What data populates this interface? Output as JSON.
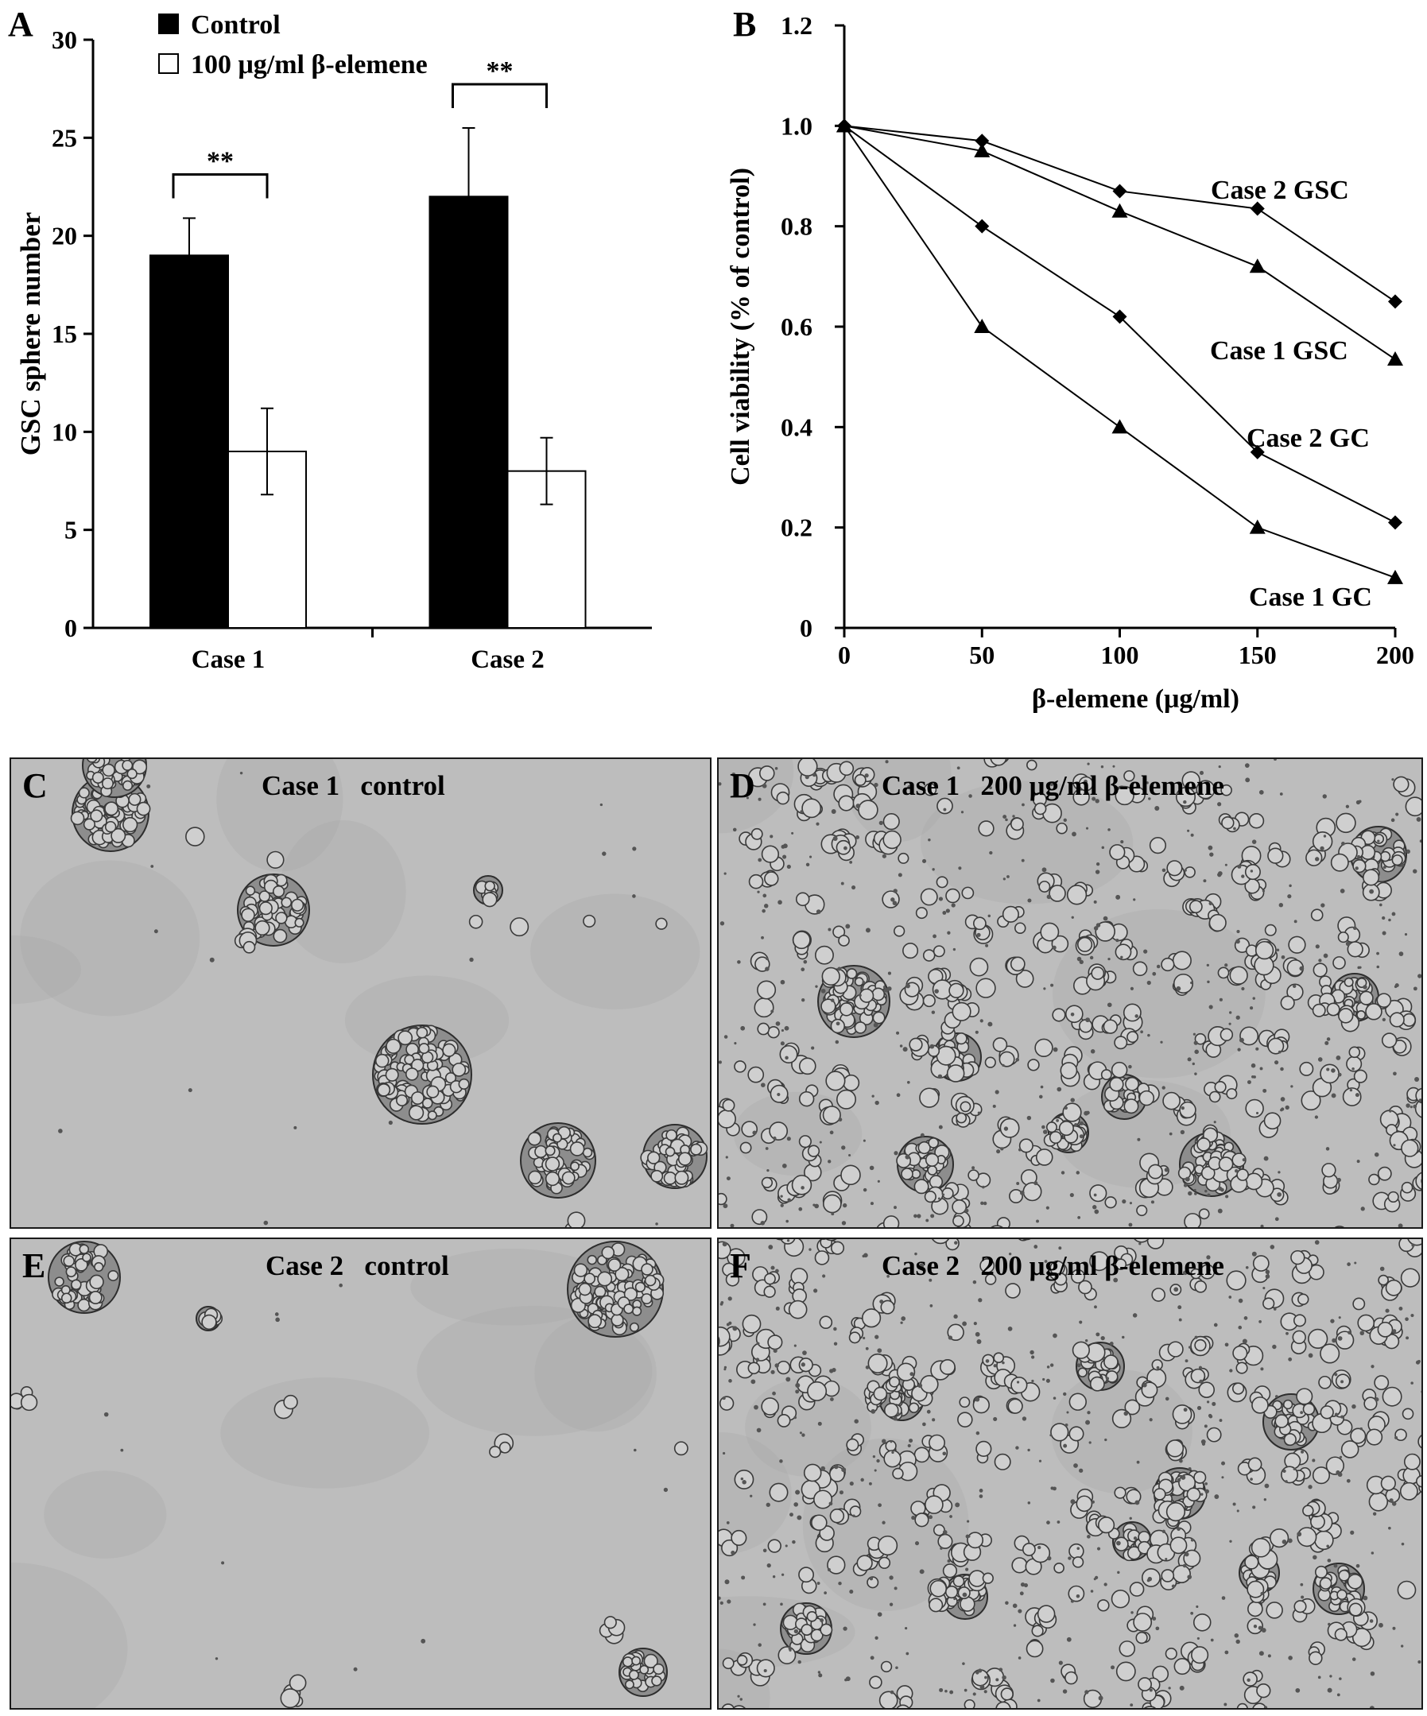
{
  "chart_data": [
    {
      "panel": "A",
      "type": "bar",
      "categories": [
        "Case 1",
        "Case 2"
      ],
      "series": [
        {
          "name": "Control",
          "values": [
            19,
            22
          ],
          "errors": [
            1.9,
            3.5
          ],
          "color": "#000000"
        },
        {
          "name": "100 μg/ml β-elemene",
          "values": [
            9,
            8
          ],
          "errors": [
            2.2,
            1.7
          ],
          "color": "#ffffff"
        }
      ],
      "ylabel": "GSC sphere number",
      "ylim": [
        0,
        30
      ],
      "yticks": [
        0,
        5,
        10,
        15,
        20,
        25,
        30
      ],
      "significance": [
        "**",
        "**"
      ],
      "legend": "top-left",
      "grid": false
    },
    {
      "panel": "B",
      "type": "line",
      "x": [
        0,
        50,
        100,
        150,
        200
      ],
      "series": [
        {
          "name": "Case 2 GSC",
          "marker": "diamond",
          "values": [
            1.0,
            0.97,
            0.87,
            0.835,
            0.65
          ]
        },
        {
          "name": "Case 1 GSC",
          "marker": "triangle",
          "values": [
            1.0,
            0.95,
            0.83,
            0.72,
            0.535
          ]
        },
        {
          "name": "Case 2 GC",
          "marker": "diamond",
          "values": [
            1.0,
            0.8,
            0.62,
            0.35,
            0.21
          ]
        },
        {
          "name": "Case 1 GC",
          "marker": "triangle",
          "values": [
            1.0,
            0.6,
            0.4,
            0.2,
            0.1
          ]
        }
      ],
      "xlabel": "β-elemene (μg/ml)",
      "ylabel": "Cell viability (% of control)",
      "xlim": [
        0,
        200
      ],
      "ylim": [
        0,
        1.2
      ],
      "xticks": [
        0,
        50,
        100,
        150,
        200
      ],
      "yticks": [
        "0",
        "0.2",
        "0.4",
        "0.6",
        "0.8",
        "1.0",
        "1.2"
      ],
      "grid": false
    }
  ],
  "panels": {
    "a_label": "A",
    "b_label": "B",
    "c": {
      "label": "C",
      "title": "Case 1   control"
    },
    "d": {
      "label": "D",
      "title": "Case 1   200 μg/ml β-elemene"
    },
    "e": {
      "label": "E",
      "title": "Case 2   control"
    },
    "f": {
      "label": "F",
      "title": "Case 2   200 μg/ml β-elemene"
    }
  },
  "colors": {
    "micrograph_bg": "#bdbdbd",
    "cell_fill": "#cfcfcf",
    "cell_edge": "#3a3a3a"
  }
}
